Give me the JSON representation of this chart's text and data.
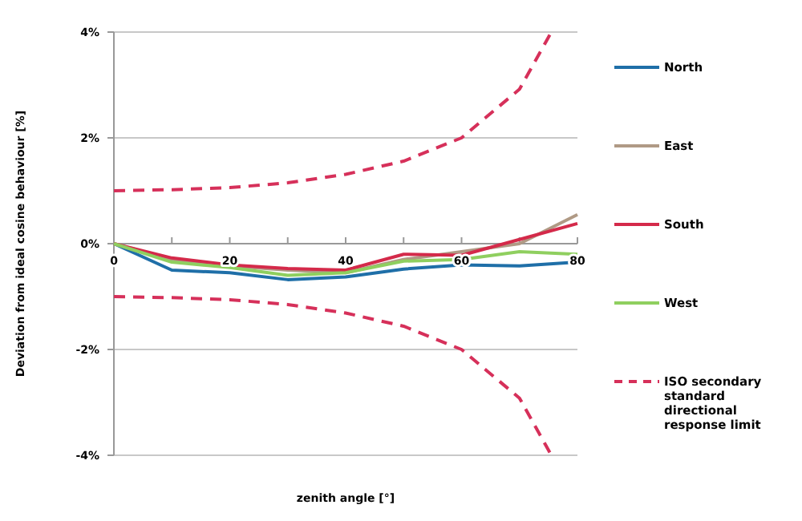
{
  "chart_data": {
    "type": "line",
    "xlabel": "zenith angle [°]",
    "ylabel": "Deviation from ideal cosine behaviour [%]",
    "xlim": [
      0,
      80
    ],
    "xticks": [
      0,
      {
        "value": 10,
        "label": null
      },
      20,
      {
        "value": 30,
        "label": null
      },
      40,
      {
        "value": 50,
        "label": null
      },
      60,
      {
        "value": 70,
        "label": null
      },
      80
    ],
    "ylim": [
      -4,
      4
    ],
    "yticks": [
      {
        "value": -4,
        "label": "-4%"
      },
      {
        "value": -2,
        "label": "-2%"
      },
      {
        "value": 0,
        "label": "0%"
      },
      {
        "value": 2,
        "label": "2%"
      },
      {
        "value": 4,
        "label": "4%"
      }
    ],
    "grid": "y",
    "legend": "right",
    "marker": "none",
    "series": [
      {
        "name": "North",
        "color": "#1f6fa8",
        "x": [
          0,
          10,
          20,
          30,
          40,
          50,
          60,
          70,
          80
        ],
        "values": [
          0,
          -0.5,
          -0.55,
          -0.68,
          -0.63,
          -0.48,
          -0.4,
          -0.42,
          -0.35
        ]
      },
      {
        "name": "East",
        "color": "#b09a85",
        "x": [
          0,
          10,
          20,
          30,
          40,
          50,
          60,
          70,
          80
        ],
        "values": [
          0,
          -0.3,
          -0.42,
          -0.5,
          -0.55,
          -0.3,
          -0.15,
          0,
          0.55
        ]
      },
      {
        "name": "South",
        "color": "#d42a4a",
        "x": [
          0,
          10,
          20,
          30,
          40,
          50,
          60,
          70,
          80
        ],
        "values": [
          0,
          -0.27,
          -0.4,
          -0.47,
          -0.5,
          -0.2,
          -0.22,
          0.08,
          0.38
        ]
      },
      {
        "name": "West",
        "color": "#8fcf5f",
        "x": [
          0,
          10,
          20,
          30,
          40,
          50,
          60,
          70,
          80
        ],
        "values": [
          0,
          -0.35,
          -0.45,
          -0.6,
          -0.55,
          -0.33,
          -0.3,
          -0.15,
          -0.2
        ]
      },
      {
        "name": "ISO secondary standard directional response limit",
        "color": "#d6305a",
        "line_style": "dashed",
        "x": [
          0,
          10,
          20,
          30,
          40,
          50,
          60,
          70,
          75.5
        ],
        "values": [
          1,
          1.02,
          1.06,
          1.15,
          1.31,
          1.56,
          2,
          2.92,
          4
        ]
      },
      {
        "color": "#d6305a",
        "line_style": "dashed",
        "x": [
          0,
          10,
          20,
          30,
          40,
          50,
          60,
          70,
          75.5
        ],
        "values": [
          -1,
          -1.02,
          -1.06,
          -1.15,
          -1.31,
          -1.56,
          -2,
          -2.92,
          -4
        ]
      }
    ]
  }
}
